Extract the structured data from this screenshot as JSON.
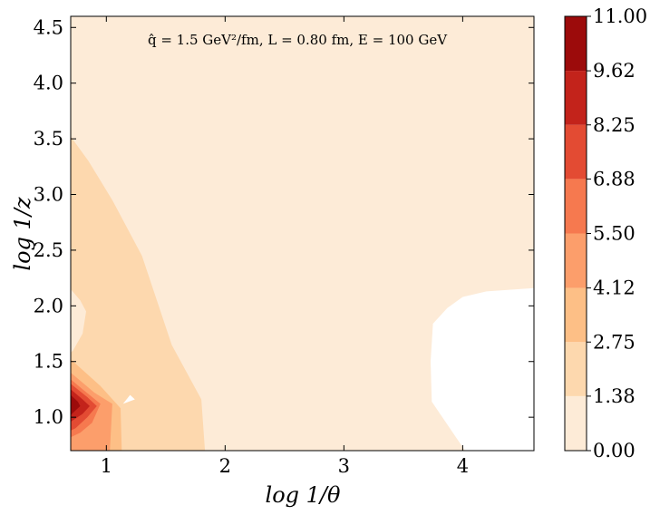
{
  "chart_data": {
    "type": "contourf",
    "title": "",
    "annotation": "q̂ = 1.5 GeV²/fm, L = 0.80 fm, E = 100 GeV",
    "xlabel": "log 1/θ",
    "ylabel": "log 1/z",
    "xlim": [
      0.7,
      4.6
    ],
    "ylim": [
      0.7,
      4.6
    ],
    "xticks": [
      1,
      2,
      3,
      4
    ],
    "yticks": [
      1.0,
      1.5,
      2.0,
      2.5,
      3.0,
      3.5,
      4.0,
      4.5
    ],
    "ytick_labels": [
      "1.0",
      "1.5",
      "2.0",
      "2.5",
      "3.0",
      "3.5",
      "4.0",
      "4.5"
    ],
    "colorbar": {
      "levels": [
        0.0,
        1.38,
        2.75,
        4.12,
        5.5,
        6.88,
        8.25,
        9.62,
        11.0
      ],
      "tick_labels": [
        "0.00",
        "1.38",
        "2.75",
        "4.12",
        "5.50",
        "6.88",
        "8.25",
        "9.62",
        "11.00"
      ],
      "colors": [
        "#fdebd7",
        "#fdd8ae",
        "#fdbf86",
        "#fc9e6b",
        "#f6794f",
        "#e34b33",
        "#c3231b",
        "#9c0b0b"
      ]
    },
    "regions": [
      {
        "level_index": 0,
        "description": "0.00-1.38 band",
        "polygon": [
          [
            0.7,
            0.7
          ],
          [
            4.6,
            0.7
          ],
          [
            4.6,
            4.6
          ],
          [
            0.7,
            4.6
          ]
        ]
      },
      {
        "level_index": 1,
        "description": "1.38-2.75 band",
        "polygon": [
          [
            0.7,
            3.52
          ],
          [
            0.85,
            3.3
          ],
          [
            1.05,
            2.95
          ],
          [
            1.3,
            2.45
          ],
          [
            1.55,
            1.65
          ],
          [
            1.8,
            1.16
          ],
          [
            1.83,
            0.7
          ],
          [
            0.7,
            0.7
          ]
        ]
      },
      {
        "level_index": 2,
        "description": "2.75-4.12 band",
        "polygon": [
          [
            0.7,
            1.52
          ],
          [
            0.95,
            1.28
          ],
          [
            1.12,
            1.08
          ],
          [
            1.13,
            0.7
          ],
          [
            0.7,
            0.7
          ]
        ]
      },
      {
        "level_index": 3,
        "description": "4.12-5.50 band",
        "polygon": [
          [
            0.7,
            1.4
          ],
          [
            0.9,
            1.22
          ],
          [
            1.05,
            1.12
          ],
          [
            1.03,
            0.7
          ],
          [
            0.7,
            0.7
          ]
        ]
      },
      {
        "level_index": 4,
        "description": "5.50-6.88 band",
        "polygon": [
          [
            0.7,
            1.34
          ],
          [
            0.8,
            1.25
          ],
          [
            0.95,
            1.12
          ],
          [
            0.88,
            0.95
          ],
          [
            0.78,
            0.86
          ],
          [
            0.7,
            0.82
          ]
        ]
      },
      {
        "level_index": 5,
        "description": "6.88-8.25 band",
        "polygon": [
          [
            0.7,
            1.3
          ],
          [
            0.84,
            1.18
          ],
          [
            0.92,
            1.1
          ],
          [
            0.84,
            1.0
          ],
          [
            0.74,
            0.9
          ],
          [
            0.7,
            0.88
          ]
        ]
      },
      {
        "level_index": 6,
        "description": "8.25-9.62 band",
        "polygon": [
          [
            0.7,
            1.25
          ],
          [
            0.8,
            1.16
          ],
          [
            0.86,
            1.1
          ],
          [
            0.8,
            1.03
          ],
          [
            0.7,
            0.96
          ]
        ]
      },
      {
        "level_index": 7,
        "description": "9.62-11.00 band",
        "polygon": [
          [
            0.7,
            1.2
          ],
          [
            0.76,
            1.14
          ],
          [
            0.78,
            1.1
          ],
          [
            0.74,
            1.06
          ],
          [
            0.7,
            1.02
          ]
        ]
      }
    ],
    "white_regions": [
      {
        "description": "below lowest level",
        "polygon": [
          [
            3.75,
            1.84
          ],
          [
            3.87,
            1.98
          ],
          [
            4.0,
            2.08
          ],
          [
            4.2,
            2.13
          ],
          [
            4.6,
            2.16
          ],
          [
            4.6,
            0.7
          ],
          [
            4.02,
            0.7
          ],
          [
            3.74,
            1.14
          ],
          [
            3.73,
            1.5
          ]
        ]
      },
      {
        "description": "below lowest level",
        "polygon": [
          [
            1.14,
            1.12
          ],
          [
            1.24,
            1.16
          ],
          [
            1.2,
            1.2
          ]
        ]
      }
    ],
    "pale_regions": [
      {
        "description": "0.00-1.38 inlay",
        "polygon": [
          [
            0.7,
            2.15
          ],
          [
            0.78,
            2.05
          ],
          [
            0.83,
            1.95
          ],
          [
            0.8,
            1.75
          ],
          [
            0.72,
            1.6
          ],
          [
            0.7,
            1.58
          ]
        ]
      }
    ]
  }
}
